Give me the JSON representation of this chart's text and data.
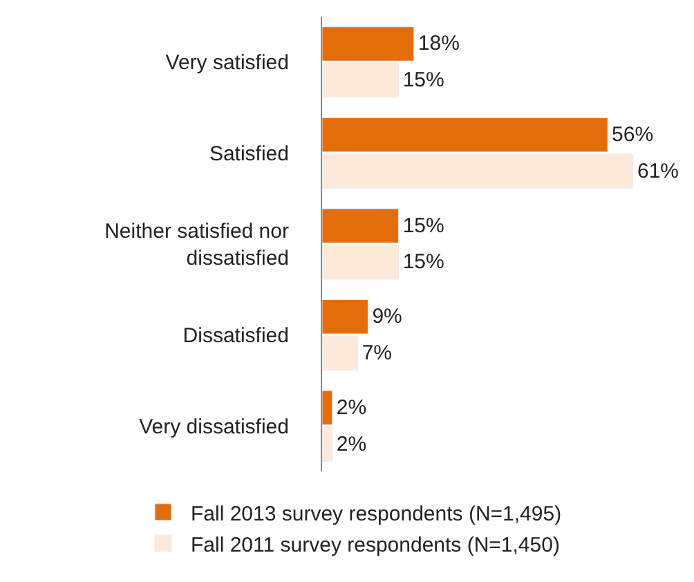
{
  "chart_data": {
    "type": "bar",
    "orientation": "horizontal",
    "categories": [
      "Very satisfied",
      "Satisfied",
      "Neither satisfied nor dissatisfied",
      "Dissatisfied",
      "Very dissatisfied"
    ],
    "series": [
      {
        "name": "Fall 2013 survey respondents (N=1,495)",
        "color": "#e46c0a",
        "values": [
          18,
          56,
          15,
          9,
          2
        ],
        "value_labels": [
          "18%",
          "56%",
          "15%",
          "9%",
          "2%"
        ]
      },
      {
        "name": "Fall 2011 survey respondents (N=1,450)",
        "color": "#fde9d9",
        "values": [
          15,
          61,
          15,
          7,
          2
        ],
        "value_labels": [
          "15%",
          "61%",
          "15%",
          "7%",
          "2%"
        ]
      }
    ],
    "legend": "bottom"
  }
}
